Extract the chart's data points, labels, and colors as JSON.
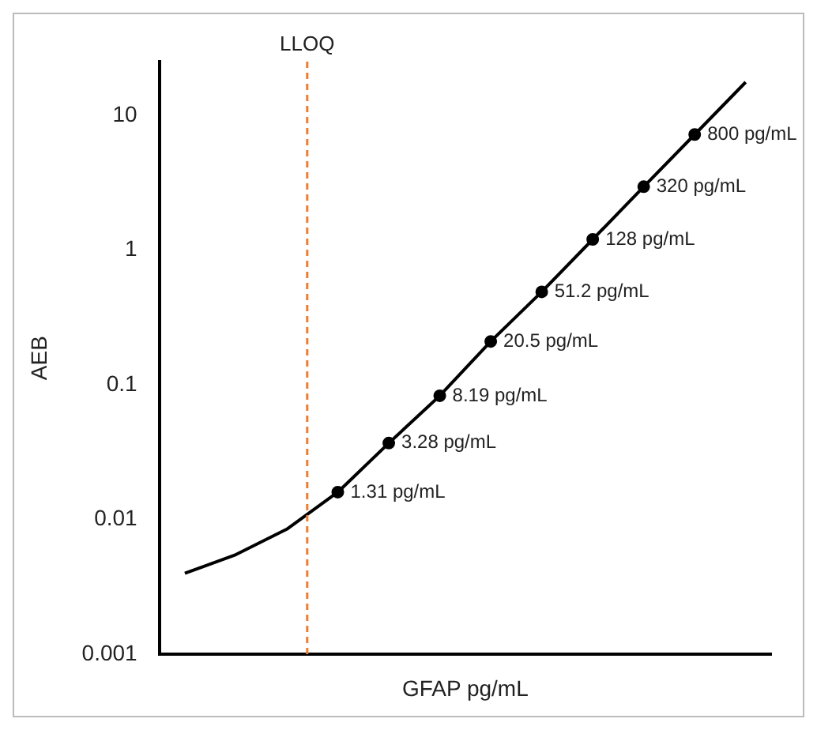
{
  "chart_data": {
    "type": "scatter",
    "xlabel": "GFAP pg/mL",
    "ylabel": "AEB",
    "log": "y",
    "grid": false,
    "legend": false,
    "tick_labels": "y",
    "categories": [
      null,
      null,
      null,
      null,
      null,
      null,
      null,
      null,
      null,
      null,
      null,
      null
    ],
    "ylim": [
      0.001,
      25
    ],
    "yticks": [
      0.001,
      0.01,
      0.1,
      1,
      10
    ],
    "series": [
      {
        "type": "line",
        "color": "#000000",
        "marker": "none",
        "line_style": "solid",
        "values": [
          0.004,
          0.0055,
          0.0085,
          0.016,
          0.037,
          0.083,
          0.21,
          0.49,
          1.2,
          2.95,
          7.2,
          17.6
        ]
      },
      {
        "type": "scatter",
        "color": "#000000",
        "marker": "circle",
        "values": [
          null,
          null,
          null,
          0.016,
          0.037,
          0.083,
          0.21,
          0.49,
          1.2,
          2.95,
          7.2,
          null
        ]
      }
    ],
    "annotations": [
      "LLOQ",
      "1.31 pg/mL",
      "3.28 pg/mL",
      "8.19 pg/mL",
      "20.5 pg/mL",
      "51.2 pg/mL",
      "128 pg/mL",
      "320 pg/mL",
      "800 pg/mL"
    ]
  }
}
